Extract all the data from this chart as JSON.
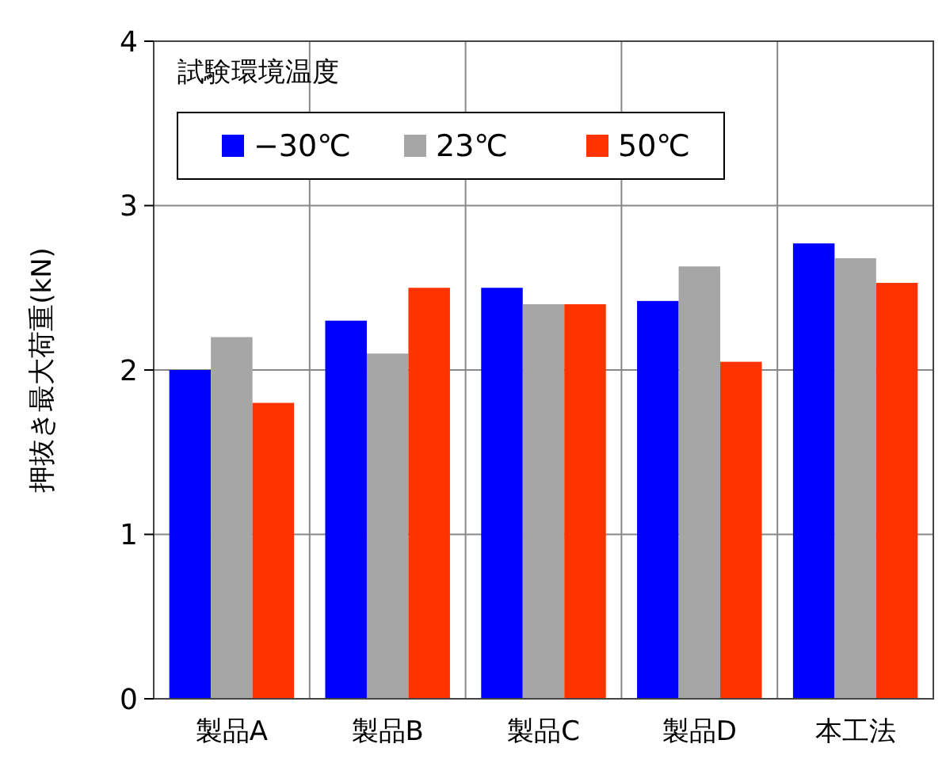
{
  "chart_data": {
    "type": "bar",
    "ylabel": "押抜き最大荷重(kN)",
    "legend_title": "試験環境温度",
    "categories": [
      "製品A",
      "製品B",
      "製品C",
      "製品D",
      "本工法"
    ],
    "series": [
      {
        "name": "−30℃",
        "color": "#0000ff",
        "values": [
          2.0,
          2.3,
          2.5,
          2.42,
          2.77
        ]
      },
      {
        "name": "23℃",
        "color": "#a6a6a6",
        "values": [
          2.2,
          2.1,
          2.4,
          2.63,
          2.68
        ]
      },
      {
        "name": "50℃",
        "color": "#ff3300",
        "values": [
          1.8,
          2.5,
          2.4,
          2.05,
          2.53
        ]
      }
    ],
    "ylim": [
      0,
      4
    ],
    "yticks": [
      0,
      1,
      2,
      3,
      4
    ],
    "grid": true,
    "legend": "top left"
  }
}
